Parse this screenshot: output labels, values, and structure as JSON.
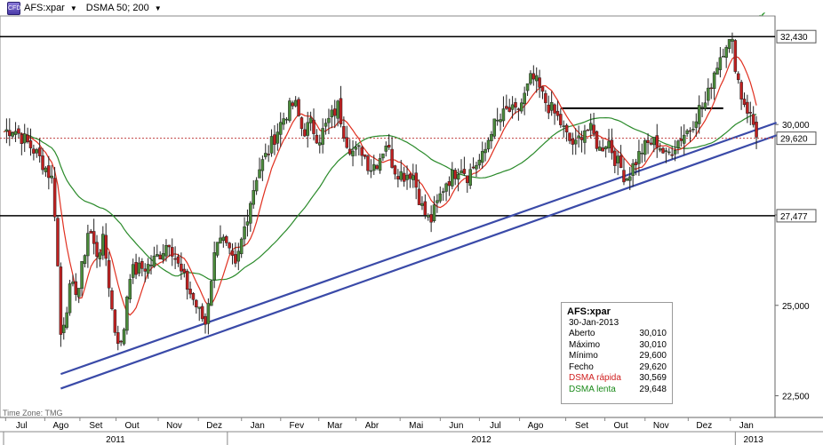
{
  "toolbar": {
    "symbol": "AFS:xpar",
    "indicator": "DSMA 50; 200"
  },
  "timezone": "Time Zone: TMG",
  "colors": {
    "up": "#4a8a3a",
    "down": "#c02020",
    "fast_ma": "#e03020",
    "slow_ma": "#2a8a2a",
    "trendline": "#3a4aa8",
    "close_line": "#c04040"
  },
  "price_labels": {
    "high": "32,430",
    "last": "29,620",
    "support": "27,477"
  },
  "infobox": {
    "symbol": "AFS:xpar",
    "date": "30-Jan-2013",
    "rows": [
      {
        "label": "Aberto",
        "value": "30,010"
      },
      {
        "label": "Máximo",
        "value": "30,010"
      },
      {
        "label": "Mínimo",
        "value": "29,600"
      },
      {
        "label": "Fecho",
        "value": "29,620"
      },
      {
        "label": "DSMA rápida",
        "value": "30,569"
      },
      {
        "label": "DSMA lenta",
        "value": "29,648"
      }
    ]
  },
  "chart_data": {
    "type": "candlestick",
    "ylim": [
      21.9,
      33.0
    ],
    "y_ticks": [
      "22,500",
      "25,000",
      "27,500",
      "30,000"
    ],
    "x_labels": [
      "Jul",
      "Ago",
      "Set",
      "Out",
      "Nov",
      "Dez",
      "Jan",
      "Fev",
      "Mar",
      "Abr",
      "Mai",
      "Jun",
      "Jul",
      "Ago",
      "Set",
      "Out",
      "Nov",
      "Dez",
      "Jan"
    ],
    "x_label_days": [
      18,
      57,
      92,
      128,
      170,
      210,
      253,
      292,
      330,
      367,
      411,
      451,
      490,
      530,
      576,
      615,
      655,
      698,
      740
    ],
    "years": [
      "2011",
      "2012",
      "2013"
    ],
    "year_spans": [
      [
        0,
        223
      ],
      [
        223,
        729
      ],
      [
        729,
        765
      ]
    ],
    "x_range": [
      0,
      765
    ],
    "horizontal_lines": [
      32.43,
      27.477
    ],
    "resistance_segment": {
      "from_day": 555,
      "to_day": 717,
      "value": 30.45
    },
    "trendlines": [
      {
        "from": [
          57,
          23.1
        ],
        "to": [
          770,
          30.05
        ]
      },
      {
        "from": [
          57,
          22.7
        ],
        "to": [
          770,
          29.7
        ]
      }
    ],
    "close_anchors": [
      [
        0,
        29.8
      ],
      [
        10,
        29.9
      ],
      [
        20,
        29.6
      ],
      [
        30,
        29.3
      ],
      [
        40,
        28.9
      ],
      [
        48,
        28.5
      ],
      [
        52,
        27.3
      ],
      [
        57,
        24.2
      ],
      [
        66,
        25.4
      ],
      [
        75,
        25.5
      ],
      [
        85,
        27.2
      ],
      [
        92,
        26.4
      ],
      [
        100,
        26.8
      ],
      [
        110,
        24.4
      ],
      [
        118,
        23.8
      ],
      [
        125,
        25.9
      ],
      [
        135,
        26.0
      ],
      [
        145,
        26.1
      ],
      [
        155,
        26.4
      ],
      [
        165,
        26.8
      ],
      [
        175,
        26.0
      ],
      [
        185,
        25.4
      ],
      [
        195,
        24.8
      ],
      [
        201,
        24.5
      ],
      [
        206,
        25.6
      ],
      [
        214,
        27.1
      ],
      [
        223,
        26.5
      ],
      [
        231,
        26.0
      ],
      [
        238,
        26.9
      ],
      [
        246,
        27.9
      ],
      [
        253,
        28.7
      ],
      [
        263,
        29.2
      ],
      [
        272,
        29.8
      ],
      [
        281,
        30.3
      ],
      [
        290,
        30.6
      ],
      [
        298,
        29.8
      ],
      [
        306,
        30.0
      ],
      [
        314,
        29.6
      ],
      [
        324,
        30.1
      ],
      [
        333,
        30.5
      ],
      [
        341,
        29.6
      ],
      [
        349,
        29.2
      ],
      [
        357,
        29.3
      ],
      [
        365,
        28.8
      ],
      [
        373,
        29.0
      ],
      [
        381,
        29.5
      ],
      [
        389,
        28.8
      ],
      [
        398,
        28.6
      ],
      [
        407,
        28.7
      ],
      [
        411,
        28.3
      ],
      [
        418,
        27.6
      ],
      [
        425,
        27.3
      ],
      [
        432,
        27.8
      ],
      [
        440,
        28.4
      ],
      [
        448,
        28.6
      ],
      [
        455,
        28.9
      ],
      [
        462,
        28.6
      ],
      [
        470,
        28.9
      ],
      [
        478,
        29.1
      ],
      [
        486,
        29.9
      ],
      [
        494,
        30.1
      ],
      [
        502,
        30.4
      ],
      [
        510,
        30.3
      ],
      [
        518,
        30.7
      ],
      [
        526,
        31.3
      ],
      [
        532,
        31.1
      ],
      [
        538,
        30.7
      ],
      [
        546,
        30.4
      ],
      [
        554,
        30.1
      ],
      [
        562,
        29.6
      ],
      [
        570,
        29.4
      ],
      [
        578,
        29.9
      ],
      [
        586,
        29.8
      ],
      [
        594,
        29.3
      ],
      [
        602,
        29.6
      ],
      [
        610,
        29.0
      ],
      [
        615,
        28.8
      ],
      [
        620,
        28.5
      ],
      [
        628,
        28.9
      ],
      [
        636,
        29.3
      ],
      [
        644,
        29.5
      ],
      [
        652,
        29.5
      ],
      [
        660,
        29.1
      ],
      [
        668,
        29.4
      ],
      [
        676,
        29.7
      ],
      [
        684,
        29.9
      ],
      [
        692,
        30.4
      ],
      [
        700,
        30.6
      ],
      [
        707,
        31.4
      ],
      [
        714,
        31.9
      ],
      [
        720,
        32.3
      ],
      [
        726,
        32.2
      ],
      [
        730,
        31.5
      ],
      [
        735,
        30.8
      ],
      [
        740,
        30.5
      ],
      [
        747,
        30.0
      ],
      [
        752,
        29.62
      ]
    ]
  }
}
